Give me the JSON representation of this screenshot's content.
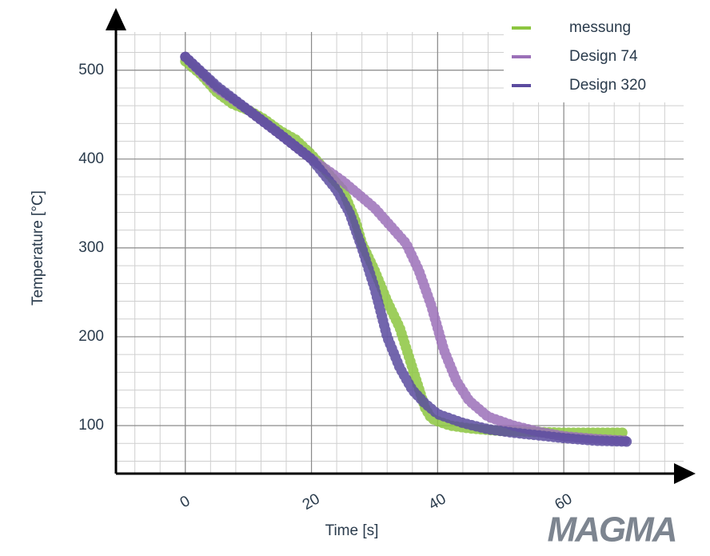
{
  "chart_data": {
    "type": "line",
    "x_label": "Time [s]",
    "y_label": "Temperature [°C]",
    "xlim": [
      -11,
      79
    ],
    "ylim": [
      46,
      552
    ],
    "xticks": [
      0,
      20,
      40,
      60
    ],
    "yticks": [
      100,
      200,
      300,
      400,
      500
    ],
    "grid": true,
    "legend": "top-right",
    "logo": "MAGMA",
    "series": [
      {
        "name": "messung",
        "color": "#8cc63f",
        "x": [
          0,
          2.5,
          5,
          7.5,
          10,
          12.5,
          15,
          17.5,
          20,
          22.5,
          25,
          27,
          28,
          30,
          32,
          34,
          36,
          38,
          39,
          40,
          42,
          45,
          50,
          55,
          60,
          65,
          70
        ],
        "values": [
          510,
          495,
          475,
          462,
          455,
          445,
          432,
          422,
          405,
          385,
          365,
          330,
          305,
          275,
          240,
          210,
          165,
          120,
          108,
          105,
          100,
          97,
          94,
          93,
          92,
          92,
          92
        ]
      },
      {
        "name": "Design 74",
        "color": "#9b70b8",
        "x": [
          0,
          5,
          10,
          15,
          20,
          25,
          30,
          35,
          37,
          39,
          41,
          43,
          45,
          48,
          52,
          56,
          60,
          65,
          70
        ],
        "values": [
          515,
          480,
          455,
          428,
          400,
          375,
          345,
          305,
          275,
          235,
          185,
          150,
          128,
          110,
          100,
          93,
          88,
          85,
          83
        ]
      },
      {
        "name": "Design 320",
        "color": "#5b4b9f",
        "x": [
          0,
          5,
          10,
          15,
          20,
          24,
          26,
          28,
          30,
          32,
          34,
          36,
          38,
          40,
          44,
          48,
          52,
          56,
          60,
          65,
          70
        ],
        "values": [
          515,
          482,
          455,
          428,
          400,
          365,
          340,
          300,
          255,
          200,
          165,
          140,
          125,
          113,
          103,
          96,
          92,
          89,
          86,
          83,
          82
        ]
      }
    ]
  }
}
